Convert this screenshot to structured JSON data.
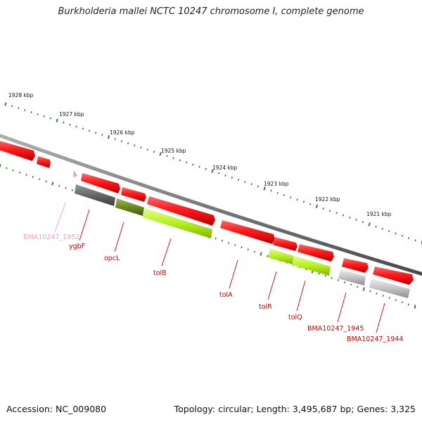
{
  "title": "Burkholderia mallei NCTC 10247 chromosome I, complete genome",
  "footer": {
    "accession": "Accession: NC_009080",
    "topology": "Topology: circular; Length: 3,495,687 bp; Genes: 3,325"
  },
  "colors": {
    "gene_red": "#ff1a1a",
    "gene_pink": "#f39ac8",
    "cds_grey": "#6b6b6b",
    "cds_olive": "#6b8a1e",
    "cds_lime": "#b5f01e",
    "cds_lightgrey": "#c8c8c8",
    "backbone": "#808080",
    "tick_green": "#1a7a1a"
  },
  "scale": {
    "ticks": [
      {
        "label": "1928 kbp",
        "kbp": 1928
      },
      {
        "label": "1927 kbp",
        "kbp": 1927
      },
      {
        "label": "1926 kbp",
        "kbp": 1926
      },
      {
        "label": "1925 kbp",
        "kbp": 1925
      },
      {
        "label": "1924 kbp",
        "kbp": 1924
      },
      {
        "label": "1923 kbp",
        "kbp": 1923
      },
      {
        "label": "1922 kbp",
        "kbp": 1922
      },
      {
        "label": "1921 kbp",
        "kbp": 1921
      }
    ]
  },
  "genes": [
    {
      "name": "BMA10247_1952",
      "kind": "pink"
    },
    {
      "name": "ygbF",
      "kind": "red"
    },
    {
      "name": "opcL",
      "kind": "red"
    },
    {
      "name": "tolB",
      "kind": "red"
    },
    {
      "name": "tolA",
      "kind": "red"
    },
    {
      "name": "tolR",
      "kind": "red"
    },
    {
      "name": "tolQ",
      "kind": "red"
    },
    {
      "name": "BMA10247_1945",
      "kind": "red"
    },
    {
      "name": "BMA10247_1944",
      "kind": "red"
    }
  ]
}
